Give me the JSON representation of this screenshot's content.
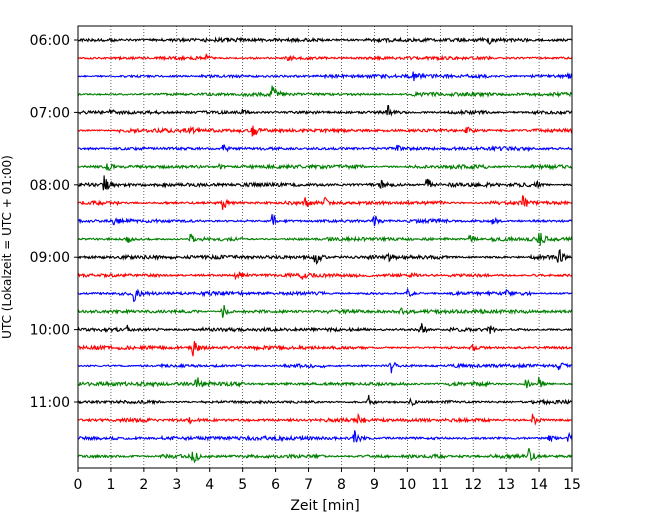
{
  "chart_data": {
    "type": "line",
    "title": "",
    "xlabel": "Zeit  [min]",
    "ylabel": "UTC (Lokalzeit = UTC + 01:00)",
    "xlim": [
      0,
      15
    ],
    "x_ticks": [
      "0",
      "1",
      "2",
      "3",
      "4",
      "5",
      "6",
      "7",
      "8",
      "9",
      "10",
      "11",
      "12",
      "13",
      "14",
      "15"
    ],
    "y_ticks": [
      {
        "label": "06:00",
        "trace": 0
      },
      {
        "label": "07:00",
        "trace": 4
      },
      {
        "label": "08:00",
        "trace": 8
      },
      {
        "label": "09:00",
        "trace": 12
      },
      {
        "label": "10:00",
        "trace": 16
      },
      {
        "label": "11:00",
        "trace": 20
      }
    ],
    "grid": "vertical dotted at each minute",
    "legend": "none",
    "trace_colors": [
      "#000000",
      "#ff0000",
      "#0000ff",
      "#008000"
    ],
    "trace_interval_min": 15,
    "traces": [
      {
        "start": "06:00",
        "events": [
          [
            12.5,
            0.3
          ]
        ]
      },
      {
        "start": "06:15",
        "events": [
          [
            3.9,
            0.45
          ],
          [
            6.4,
            0.3
          ]
        ]
      },
      {
        "start": "06:30",
        "events": [
          [
            10.2,
            0.5
          ],
          [
            14.9,
            0.4
          ]
        ]
      },
      {
        "start": "06:45",
        "events": [
          [
            5.9,
            0.9
          ]
        ]
      },
      {
        "start": "07:00",
        "events": [
          [
            9.4,
            0.95
          ],
          [
            5.0,
            0.35
          ],
          [
            1.0,
            0.3
          ]
        ]
      },
      {
        "start": "07:15",
        "events": [
          [
            5.3,
            0.8
          ],
          [
            11.8,
            0.45
          ],
          [
            3.4,
            0.3
          ]
        ]
      },
      {
        "start": "07:30",
        "events": [
          [
            4.4,
            0.55
          ],
          [
            9.7,
            0.35
          ]
        ]
      },
      {
        "start": "07:45",
        "events": [
          [
            0.9,
            0.5
          ],
          [
            4.3,
            0.3
          ]
        ]
      },
      {
        "start": "08:00",
        "events": [
          [
            0.8,
            1.0
          ],
          [
            9.2,
            0.55
          ],
          [
            10.6,
            1.0
          ],
          [
            13.9,
            0.55
          ]
        ]
      },
      {
        "start": "08:15",
        "events": [
          [
            4.4,
            0.85
          ],
          [
            6.9,
            0.55
          ],
          [
            7.5,
            0.5
          ],
          [
            13.5,
            0.85
          ]
        ]
      },
      {
        "start": "08:30",
        "events": [
          [
            1.1,
            0.6
          ],
          [
            5.9,
            0.8
          ],
          [
            9.0,
            0.9
          ],
          [
            12.6,
            0.5
          ]
        ]
      },
      {
        "start": "08:45",
        "events": [
          [
            1.5,
            0.6
          ],
          [
            3.4,
            0.75
          ],
          [
            11.9,
            0.45
          ],
          [
            14.0,
            0.95
          ]
        ]
      },
      {
        "start": "09:00",
        "events": [
          [
            7.2,
            1.0
          ],
          [
            9.4,
            0.45
          ],
          [
            14.6,
            1.0
          ]
        ]
      },
      {
        "start": "09:15",
        "events": [
          [
            4.8,
            0.9
          ],
          [
            6.8,
            0.35
          ],
          [
            10.1,
            0.3
          ]
        ]
      },
      {
        "start": "09:30",
        "events": [
          [
            1.7,
            1.0
          ],
          [
            10.0,
            0.55
          ],
          [
            13.0,
            0.3
          ]
        ]
      },
      {
        "start": "09:45",
        "events": [
          [
            4.4,
            1.0
          ],
          [
            9.8,
            0.4
          ]
        ]
      },
      {
        "start": "10:00",
        "events": [
          [
            1.5,
            0.55
          ],
          [
            10.4,
            1.0
          ],
          [
            12.5,
            0.6
          ]
        ]
      },
      {
        "start": "10:15",
        "events": [
          [
            3.5,
            0.95
          ],
          [
            12.0,
            0.35
          ]
        ]
      },
      {
        "start": "10:30",
        "events": [
          [
            9.5,
            0.85
          ],
          [
            14.6,
            0.5
          ]
        ]
      },
      {
        "start": "10:45",
        "events": [
          [
            3.6,
            0.9
          ],
          [
            13.6,
            0.6
          ],
          [
            14.0,
            0.95
          ]
        ]
      },
      {
        "start": "11:00",
        "events": [
          [
            8.8,
            1.0
          ],
          [
            10.1,
            0.55
          ],
          [
            11.2,
            0.35
          ]
        ]
      },
      {
        "start": "11:15",
        "events": [
          [
            3.4,
            0.5
          ],
          [
            8.5,
            0.6
          ],
          [
            13.8,
            0.9
          ]
        ]
      },
      {
        "start": "11:30",
        "events": [
          [
            8.4,
            0.95
          ],
          [
            14.3,
            0.5
          ],
          [
            14.9,
            0.6
          ]
        ]
      },
      {
        "start": "11:45",
        "events": [
          [
            3.5,
            0.85
          ],
          [
            13.7,
            1.0
          ]
        ]
      }
    ]
  }
}
